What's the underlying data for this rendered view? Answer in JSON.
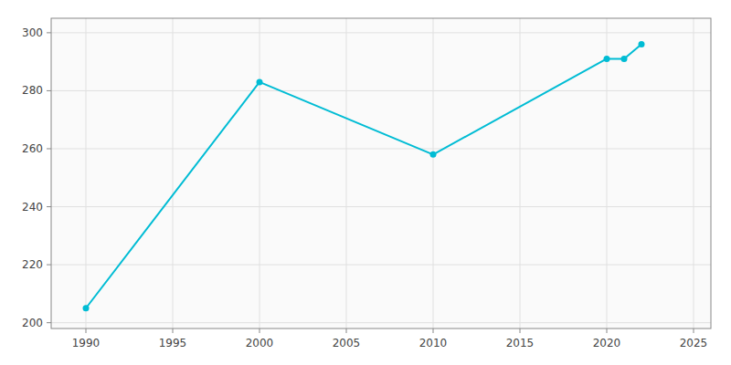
{
  "chart_data": {
    "type": "line",
    "x": [
      1990,
      2000,
      2010,
      2020,
      2021,
      2022
    ],
    "values": [
      205,
      283,
      258,
      291,
      291,
      296
    ],
    "color": "#00BCD4",
    "marker": "o",
    "xlim": [
      1988,
      2026
    ],
    "ylim": [
      198,
      305
    ],
    "xticks": [
      1990,
      1995,
      2000,
      2005,
      2010,
      2015,
      2020,
      2025
    ],
    "yticks": [
      200,
      220,
      240,
      260,
      280,
      300
    ],
    "grid": true
  }
}
